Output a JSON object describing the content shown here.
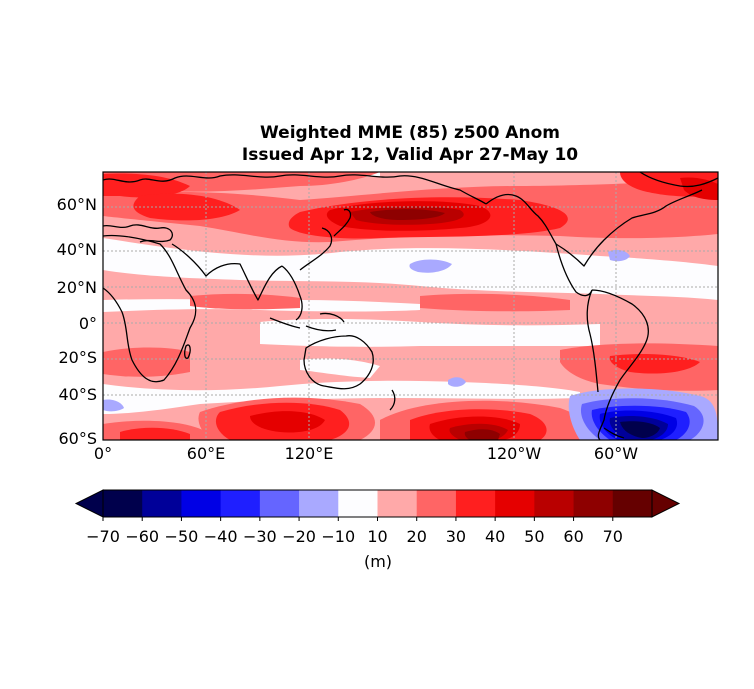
{
  "title": "Weighted MME (85) z500 Anom",
  "subtitle": "Issued Apr 12, Valid Apr 27-May 10",
  "units": "(m)",
  "lat_labels": [
    "60°N",
    "40°N",
    "20°N",
    "0°",
    "20°S",
    "40°S",
    "60°S"
  ],
  "lon_labels": [
    "0°",
    "60°E",
    "120°E",
    "120°W",
    "60°W"
  ],
  "colorbar": {
    "ticks": [
      "−70",
      "−60",
      "−50",
      "−40",
      "−30",
      "−20",
      "−10",
      "10",
      "20",
      "30",
      "40",
      "50",
      "60",
      "70"
    ],
    "colors": [
      "#00004c",
      "#000099",
      "#0000e5",
      "#1f1fff",
      "#6565ff",
      "#a9a9ff",
      "#fdfdff",
      "#ffa9a9",
      "#ff6565",
      "#ff1f1f",
      "#e50000",
      "#b90000",
      "#8e0000",
      "#650000"
    ],
    "under_color": "#00004c",
    "over_color": "#650000"
  },
  "map": {
    "projection": "equirectangular",
    "lon_range": [
      0,
      360
    ],
    "lat_range": [
      -60,
      78
    ],
    "background_color": "#ffffff",
    "gridlines": "dotted gray",
    "coastlines": "black"
  }
}
